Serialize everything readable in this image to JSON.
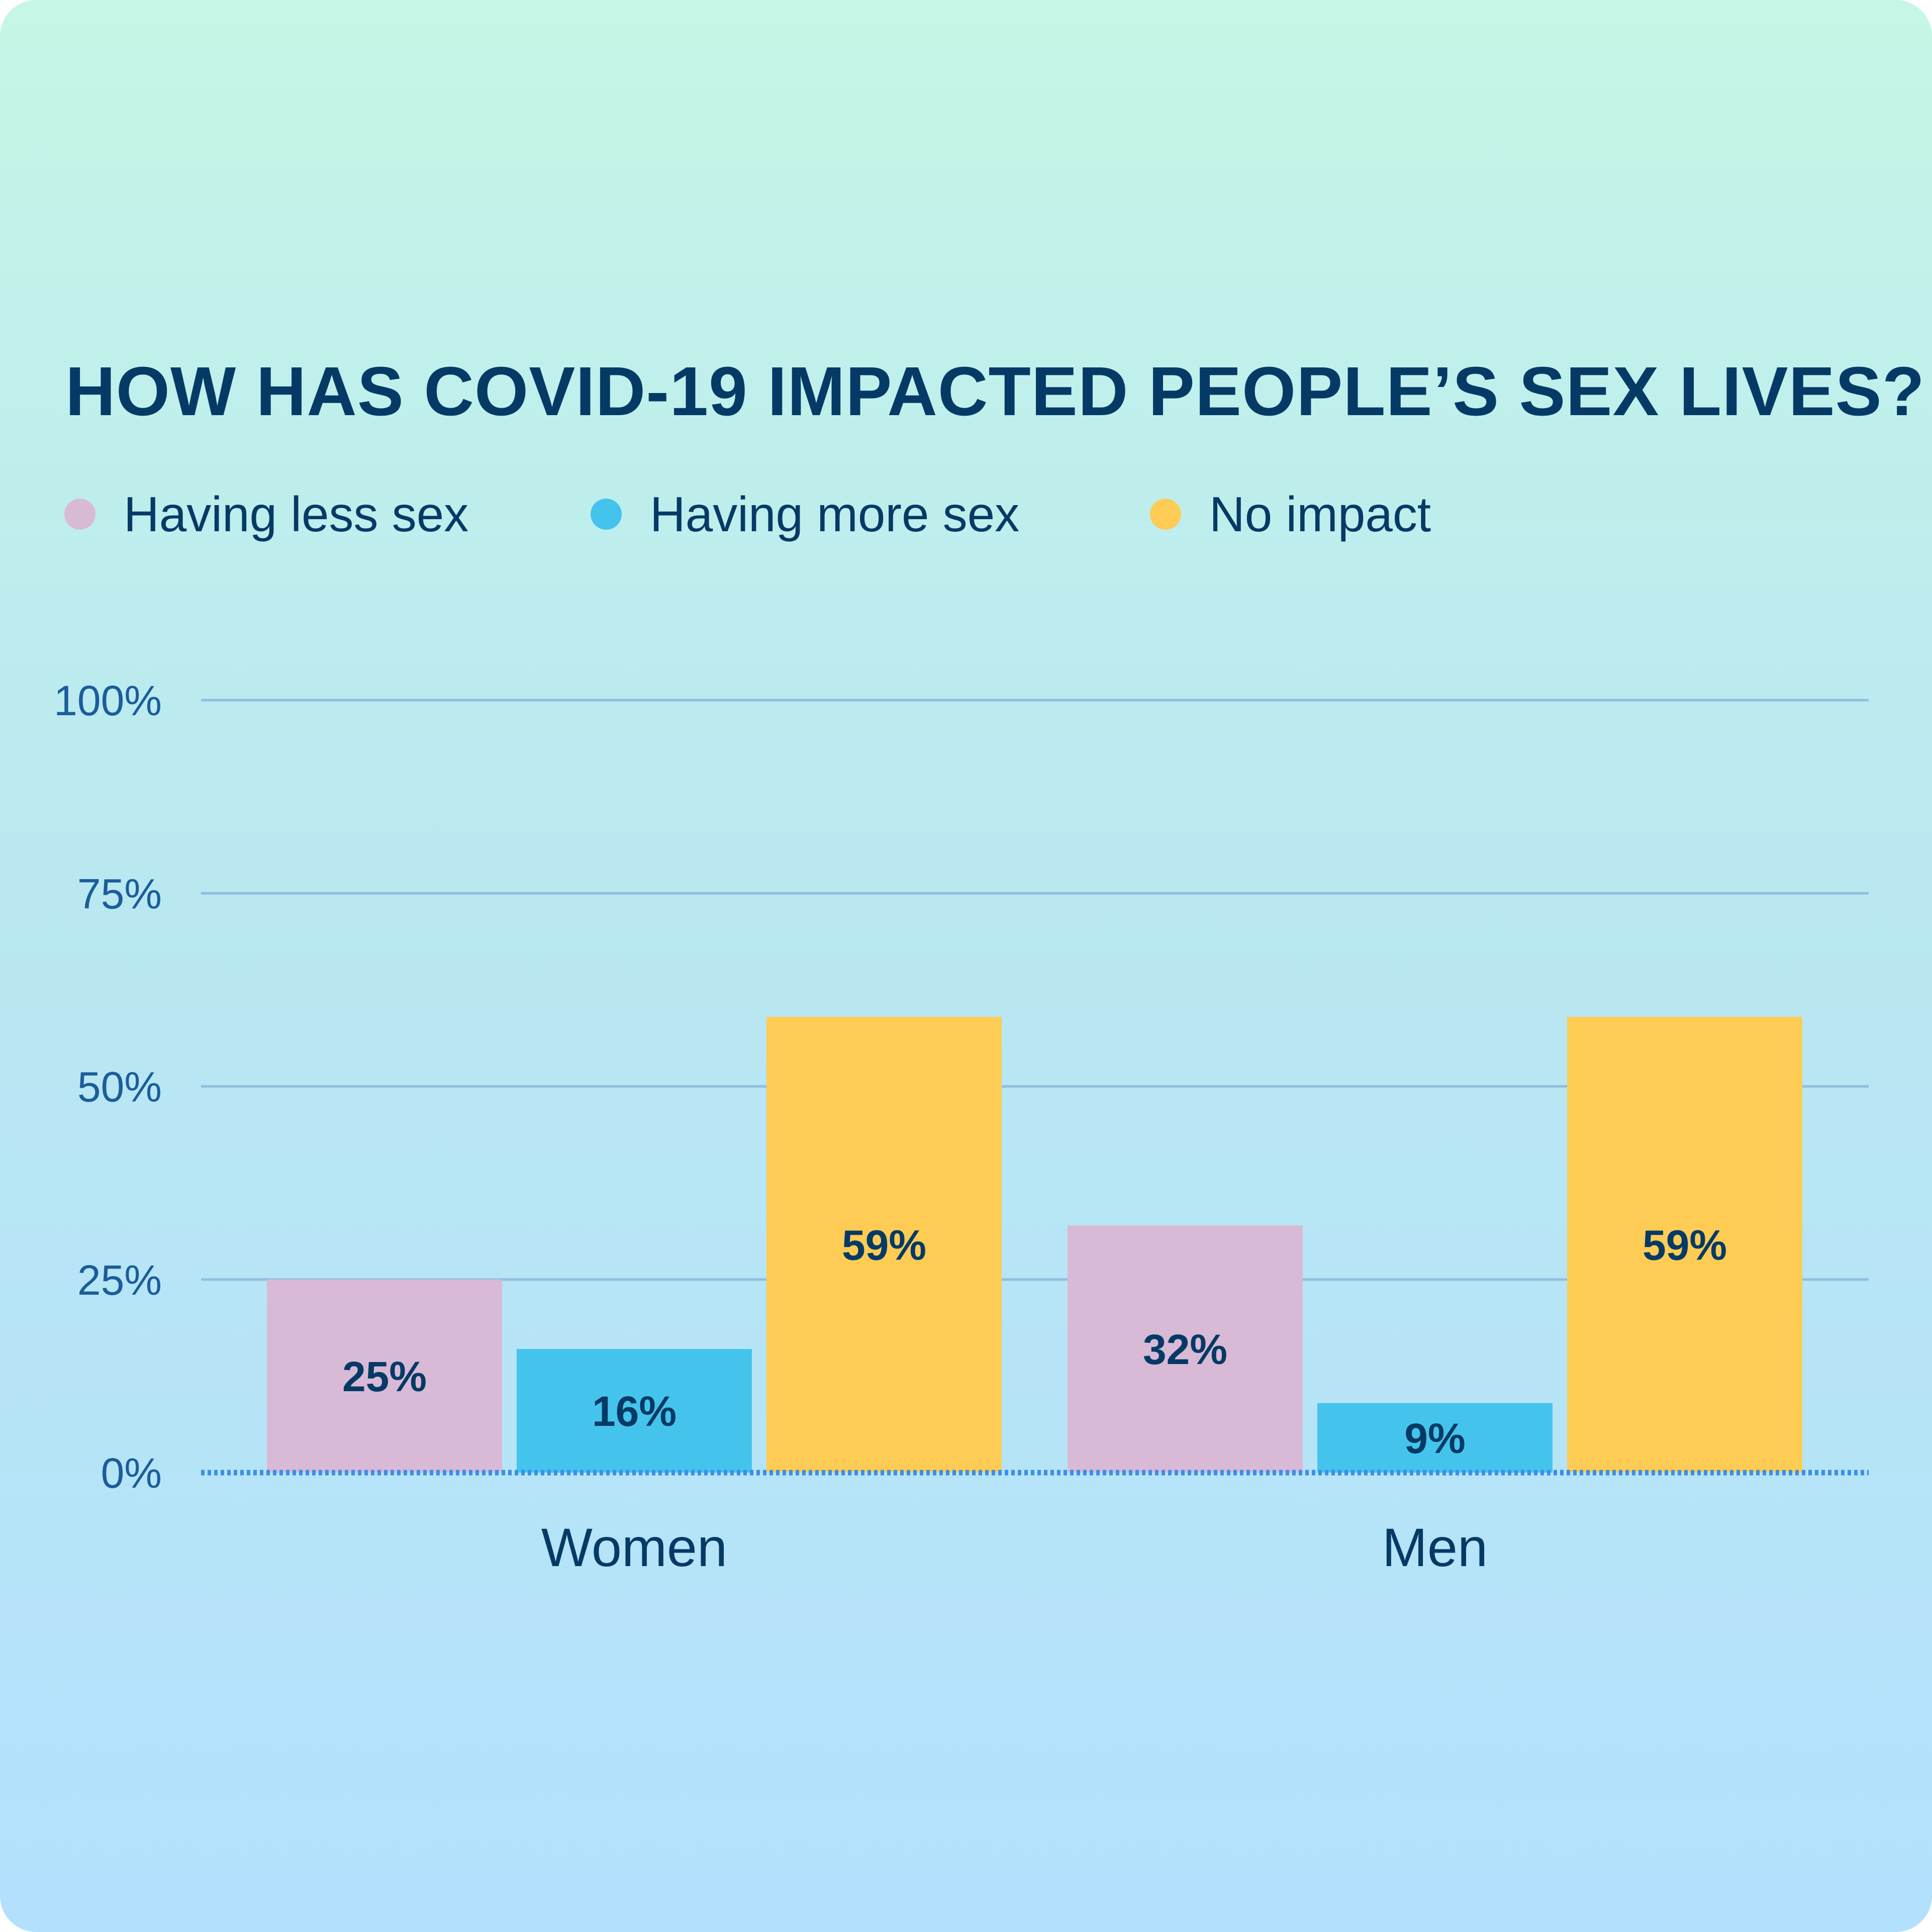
{
  "chart_data": {
    "type": "bar",
    "title": "HOW HAS COVID-19 IMPACTED PEOPLE’S SEX LIVES?",
    "categories": [
      "Women",
      "Men"
    ],
    "series": [
      {
        "name": "Having less sex",
        "color": "#d8bad6",
        "values": [
          25,
          32
        ],
        "labels": [
          "25%",
          "32%"
        ]
      },
      {
        "name": "Having more sex",
        "color": "#44c4ec",
        "values": [
          16,
          9
        ],
        "labels": [
          "16%",
          "9%"
        ]
      },
      {
        "name": "No impact",
        "color": "#fecc54",
        "values": [
          59,
          59
        ],
        "labels": [
          "59%",
          "59%"
        ]
      }
    ],
    "ylim": [
      0,
      100
    ],
    "yticks": [
      0,
      25,
      50,
      75,
      100
    ],
    "ytick_labels": [
      "0%",
      "25%",
      "50%",
      "75%",
      "100%"
    ],
    "grid": true,
    "legend_position": "top-left"
  },
  "colors": {
    "title_text": "#063a66",
    "tick_text": "#1b5d9c",
    "gridline": "#8fbfe0",
    "baseline": "#3a8fe8"
  }
}
